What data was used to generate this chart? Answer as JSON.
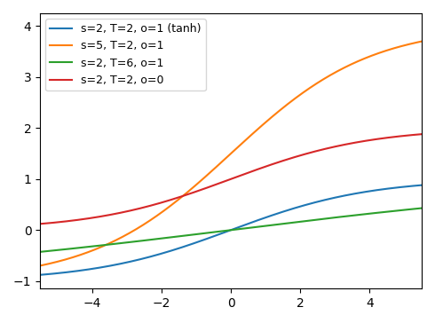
{
  "x_min": -5.5,
  "x_max": 5.5,
  "ylim": [
    -1.15,
    4.25
  ],
  "curves": [
    {
      "label": "s=2, T=2, o=1 (tanh)",
      "color": "#1f77b4",
      "s": 2,
      "T": 2,
      "o": 1
    },
    {
      "label": "s=5, T=2, o=1",
      "color": "#ff7f0e",
      "s": 5,
      "T": 2,
      "o": 1
    },
    {
      "label": "s=2, T=6, o=1",
      "color": "#2ca02c",
      "s": 2,
      "T": 6,
      "o": 1
    },
    {
      "label": "s=2, T=2, o=0",
      "color": "#d62728",
      "s": 2,
      "T": 2,
      "o": 0
    }
  ],
  "figsize": [
    4.9,
    3.64
  ],
  "dpi": 100,
  "legend_loc": "upper left",
  "xticks": [
    -4,
    -2,
    0,
    2,
    4
  ],
  "yticks": [
    -1,
    0,
    1,
    2,
    3,
    4
  ]
}
